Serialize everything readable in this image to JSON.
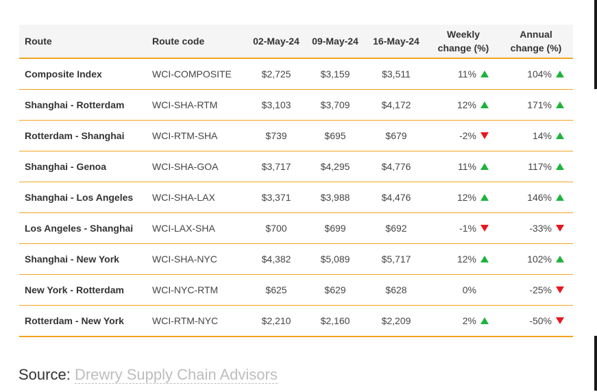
{
  "table": {
    "headers": {
      "route": "Route",
      "code": "Route code",
      "d1": "02-May-24",
      "d2": "09-May-24",
      "d3": "16-May-24",
      "weekly_line1": "Weekly",
      "weekly_line2": "change (%)",
      "annual_line1": "Annual",
      "annual_line2": "change (%)"
    },
    "rows": [
      {
        "route": "Composite Index",
        "code": "WCI-COMPOSITE",
        "d1": "$2,725",
        "d2": "$3,159",
        "d3": "$3,511",
        "weekly": "11%",
        "weekly_dir": "up",
        "annual": "104%",
        "annual_dir": "up"
      },
      {
        "route": "Shanghai - Rotterdam",
        "code": "WCI-SHA-RTM",
        "d1": "$3,103",
        "d2": "$3,709",
        "d3": "$4,172",
        "weekly": "12%",
        "weekly_dir": "up",
        "annual": "171%",
        "annual_dir": "up"
      },
      {
        "route": "Rotterdam - Shanghai",
        "code": "WCI-RTM-SHA",
        "d1": "$739",
        "d2": "$695",
        "d3": "$679",
        "weekly": "-2%",
        "weekly_dir": "down",
        "annual": "14%",
        "annual_dir": "up"
      },
      {
        "route": "Shanghai - Genoa",
        "code": "WCI-SHA-GOA",
        "d1": "$3,717",
        "d2": "$4,295",
        "d3": "$4,776",
        "weekly": "11%",
        "weekly_dir": "up",
        "annual": "117%",
        "annual_dir": "up"
      },
      {
        "route": "Shanghai - Los Angeles",
        "code": "WCI-SHA-LAX",
        "d1": "$3,371",
        "d2": "$3,988",
        "d3": "$4,476",
        "weekly": "12%",
        "weekly_dir": "up",
        "annual": "146%",
        "annual_dir": "up"
      },
      {
        "route": "Los Angeles - Shanghai",
        "code": "WCI-LAX-SHA",
        "d1": "$700",
        "d2": "$699",
        "d3": "$692",
        "weekly": "-1%",
        "weekly_dir": "down",
        "annual": "-33%",
        "annual_dir": "down"
      },
      {
        "route": "Shanghai - New York",
        "code": "WCI-SHA-NYC",
        "d1": "$4,382",
        "d2": "$5,089",
        "d3": "$5,717",
        "weekly": "12%",
        "weekly_dir": "up",
        "annual": "102%",
        "annual_dir": "up"
      },
      {
        "route": "New York - Rotterdam",
        "code": "WCI-NYC-RTM",
        "d1": "$625",
        "d2": "$629",
        "d3": "$628",
        "weekly": "0%",
        "weekly_dir": "none",
        "annual": "-25%",
        "annual_dir": "down"
      },
      {
        "route": "Rotterdam - New York",
        "code": "WCI-RTM-NYC",
        "d1": "$2,210",
        "d2": "$2,160",
        "d3": "$2,209",
        "weekly": "2%",
        "weekly_dir": "up",
        "annual": "-50%",
        "annual_dir": "down"
      }
    ]
  },
  "source": {
    "label": "Source:",
    "link_text": "Drewry Supply Chain Advisors"
  },
  "colors": {
    "up": "#1db33c",
    "down": "#e8171e",
    "rule": "#f3a21b",
    "header_bg": "#f5f5f5"
  },
  "icons": {
    "up": "triangle-up-icon",
    "down": "triangle-down-icon"
  }
}
